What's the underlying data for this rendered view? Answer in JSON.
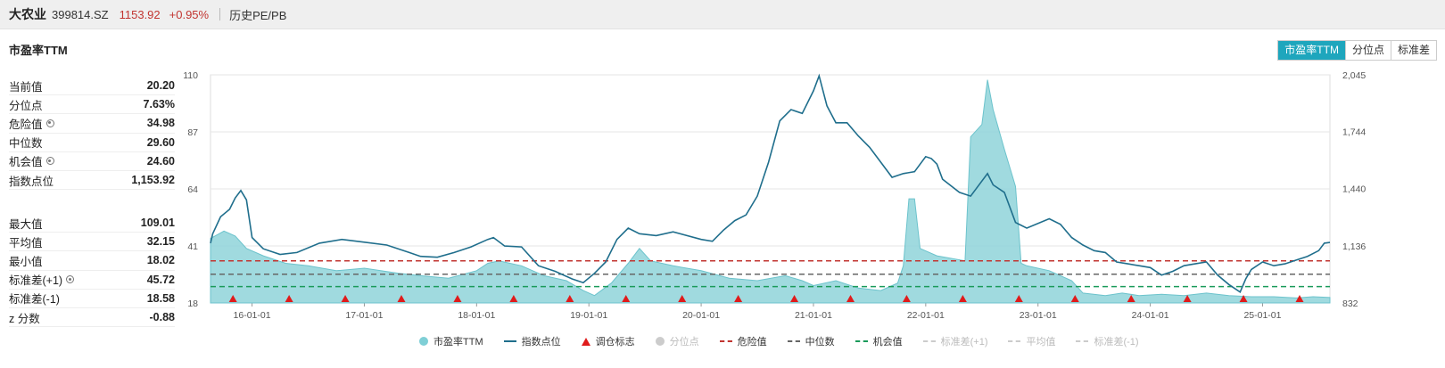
{
  "header": {
    "name": "大农业",
    "code": "399814.SZ",
    "price": "1153.92",
    "change": "+0.95%",
    "history_label": "历史PE/PB"
  },
  "title": "市盈率TTM",
  "tabs": [
    {
      "label": "市盈率TTM",
      "active": true
    },
    {
      "label": "分位点",
      "active": false
    },
    {
      "label": "标准差",
      "active": false
    }
  ],
  "stats_primary": [
    {
      "label": "当前值",
      "value": "20.20",
      "gear": false
    },
    {
      "label": "分位点",
      "value": "7.63%",
      "gear": false
    },
    {
      "label": "危险值",
      "value": "34.98",
      "gear": true
    },
    {
      "label": "中位数",
      "value": "29.60",
      "gear": false
    },
    {
      "label": "机会值",
      "value": "24.60",
      "gear": true
    },
    {
      "label": "指数点位",
      "value": "1,153.92",
      "gear": false
    }
  ],
  "stats_secondary": [
    {
      "label": "最大值",
      "value": "109.01",
      "gear": false
    },
    {
      "label": "平均值",
      "value": "32.15",
      "gear": false
    },
    {
      "label": "最小值",
      "value": "18.02",
      "gear": false
    },
    {
      "label": "标准差(+1)",
      "value": "45.72",
      "gear": true
    },
    {
      "label": "标准差(-1)",
      "value": "18.58",
      "gear": false
    },
    {
      "label": "z 分数",
      "value": "-0.88",
      "gear": false
    }
  ],
  "legend": [
    {
      "label": "市盈率TTM",
      "kind": "dot",
      "color": "#7fcfd6",
      "active": true
    },
    {
      "label": "指数点位",
      "kind": "line",
      "color": "#1f6e8c",
      "active": true
    },
    {
      "label": "调仓标志",
      "kind": "triangle",
      "color": "#e01b1b",
      "active": true
    },
    {
      "label": "分位点",
      "kind": "dot",
      "color": "#cccccc",
      "active": false
    },
    {
      "label": "危险值",
      "kind": "dash",
      "color": "#c23531",
      "active": true
    },
    {
      "label": "中位数",
      "kind": "dash",
      "color": "#666666",
      "active": true
    },
    {
      "label": "机会值",
      "kind": "dash",
      "color": "#1a9a5a",
      "active": true
    },
    {
      "label": "标准差(+1)",
      "kind": "dash",
      "color": "#cccccc",
      "active": false
    },
    {
      "label": "平均值",
      "kind": "dash",
      "color": "#cccccc",
      "active": false
    },
    {
      "label": "标准差(-1)",
      "kind": "dash",
      "color": "#cccccc",
      "active": false
    }
  ],
  "colors": {
    "pe_fill": "#8fd3d9",
    "pe_line": "#6cc3cc",
    "index_line": "#1f6e8c",
    "danger": "#c23531",
    "median": "#666666",
    "opportunity": "#1a9a5a",
    "marker": "#e01b1b"
  },
  "chart_data": {
    "type": "area",
    "x_ticks": [
      "16-01-01",
      "17-01-01",
      "18-01-01",
      "19-01-01",
      "20-01-01",
      "21-01-01",
      "22-01-01",
      "23-01-01",
      "24-01-01",
      "25-01-01"
    ],
    "x_range": [
      2015.63,
      2025.6
    ],
    "y_left": {
      "ticks": [
        110,
        87,
        64,
        41,
        18
      ],
      "range": [
        18,
        110
      ]
    },
    "y_right": {
      "ticks": [
        "2,045",
        "1,744",
        "1,440",
        "1,136",
        "832"
      ],
      "range": [
        832,
        2045
      ]
    },
    "reference_lines": {
      "danger": 34.98,
      "median": 29.6,
      "opportunity": 24.6
    },
    "series": [
      {
        "name": "市盈率TTM",
        "axis": "left",
        "points": [
          [
            2015.63,
            44
          ],
          [
            2015.75,
            47
          ],
          [
            2015.85,
            45
          ],
          [
            2015.95,
            40
          ],
          [
            2016.1,
            37
          ],
          [
            2016.3,
            34
          ],
          [
            2016.5,
            33
          ],
          [
            2016.75,
            31
          ],
          [
            2017.0,
            32
          ],
          [
            2017.3,
            30
          ],
          [
            2017.5,
            29
          ],
          [
            2017.75,
            28
          ],
          [
            2018.0,
            31
          ],
          [
            2018.1,
            34
          ],
          [
            2018.2,
            35
          ],
          [
            2018.4,
            33
          ],
          [
            2018.6,
            29
          ],
          [
            2018.8,
            27
          ],
          [
            2018.95,
            23
          ],
          [
            2019.05,
            21
          ],
          [
            2019.2,
            26
          ],
          [
            2019.35,
            34
          ],
          [
            2019.45,
            40
          ],
          [
            2019.55,
            35
          ],
          [
            2019.75,
            33
          ],
          [
            2020.0,
            31
          ],
          [
            2020.25,
            28
          ],
          [
            2020.5,
            27
          ],
          [
            2020.75,
            29
          ],
          [
            2020.9,
            27
          ],
          [
            2021.0,
            25
          ],
          [
            2021.2,
            27
          ],
          [
            2021.4,
            24
          ],
          [
            2021.6,
            23
          ],
          [
            2021.75,
            26
          ],
          [
            2021.8,
            33
          ],
          [
            2021.85,
            60
          ],
          [
            2021.9,
            60
          ],
          [
            2021.95,
            40
          ],
          [
            2022.1,
            37
          ],
          [
            2022.35,
            35
          ],
          [
            2022.4,
            85
          ],
          [
            2022.5,
            90
          ],
          [
            2022.55,
            108
          ],
          [
            2022.6,
            96
          ],
          [
            2022.7,
            80
          ],
          [
            2022.8,
            65
          ],
          [
            2022.85,
            34
          ],
          [
            2022.9,
            33
          ],
          [
            2023.1,
            31
          ],
          [
            2023.3,
            27
          ],
          [
            2023.4,
            22
          ],
          [
            2023.6,
            21
          ],
          [
            2023.75,
            22
          ],
          [
            2023.9,
            21
          ],
          [
            2024.1,
            21.5
          ],
          [
            2024.3,
            21
          ],
          [
            2024.5,
            22
          ],
          [
            2024.7,
            21
          ],
          [
            2024.9,
            20.5
          ],
          [
            2025.1,
            20.5
          ],
          [
            2025.3,
            20
          ],
          [
            2025.45,
            20.5
          ],
          [
            2025.6,
            20.2
          ]
        ]
      },
      {
        "name": "指数点位",
        "axis": "right",
        "points": [
          [
            2015.63,
            1150
          ],
          [
            2015.65,
            1200
          ],
          [
            2015.72,
            1290
          ],
          [
            2015.8,
            1330
          ],
          [
            2015.85,
            1390
          ],
          [
            2015.9,
            1430
          ],
          [
            2015.95,
            1380
          ],
          [
            2016.0,
            1180
          ],
          [
            2016.1,
            1120
          ],
          [
            2016.25,
            1090
          ],
          [
            2016.4,
            1100
          ],
          [
            2016.6,
            1150
          ],
          [
            2016.8,
            1170
          ],
          [
            2017.0,
            1155
          ],
          [
            2017.2,
            1140
          ],
          [
            2017.4,
            1100
          ],
          [
            2017.5,
            1080
          ],
          [
            2017.65,
            1075
          ],
          [
            2017.8,
            1100
          ],
          [
            2017.95,
            1130
          ],
          [
            2018.1,
            1170
          ],
          [
            2018.15,
            1180
          ],
          [
            2018.25,
            1135
          ],
          [
            2018.4,
            1130
          ],
          [
            2018.55,
            1030
          ],
          [
            2018.7,
            1000
          ],
          [
            2018.85,
            960
          ],
          [
            2018.95,
            940
          ],
          [
            2019.05,
            990
          ],
          [
            2019.15,
            1050
          ],
          [
            2019.25,
            1170
          ],
          [
            2019.35,
            1230
          ],
          [
            2019.45,
            1200
          ],
          [
            2019.6,
            1190
          ],
          [
            2019.75,
            1210
          ],
          [
            2020.0,
            1170
          ],
          [
            2020.1,
            1160
          ],
          [
            2020.2,
            1220
          ],
          [
            2020.3,
            1270
          ],
          [
            2020.4,
            1300
          ],
          [
            2020.5,
            1400
          ],
          [
            2020.55,
            1490
          ],
          [
            2020.6,
            1580
          ],
          [
            2020.7,
            1800
          ],
          [
            2020.8,
            1860
          ],
          [
            2020.9,
            1840
          ],
          [
            2021.0,
            1960
          ],
          [
            2021.05,
            2040
          ],
          [
            2021.12,
            1880
          ],
          [
            2021.2,
            1790
          ],
          [
            2021.3,
            1790
          ],
          [
            2021.4,
            1720
          ],
          [
            2021.5,
            1660
          ],
          [
            2021.6,
            1580
          ],
          [
            2021.7,
            1500
          ],
          [
            2021.8,
            1520
          ],
          [
            2021.9,
            1530
          ],
          [
            2022.0,
            1610
          ],
          [
            2022.05,
            1600
          ],
          [
            2022.1,
            1570
          ],
          [
            2022.15,
            1490
          ],
          [
            2022.3,
            1420
          ],
          [
            2022.4,
            1400
          ],
          [
            2022.5,
            1480
          ],
          [
            2022.55,
            1520
          ],
          [
            2022.6,
            1460
          ],
          [
            2022.7,
            1420
          ],
          [
            2022.8,
            1260
          ],
          [
            2022.9,
            1230
          ],
          [
            2023.1,
            1280
          ],
          [
            2023.2,
            1250
          ],
          [
            2023.3,
            1180
          ],
          [
            2023.4,
            1140
          ],
          [
            2023.5,
            1110
          ],
          [
            2023.6,
            1100
          ],
          [
            2023.7,
            1050
          ],
          [
            2023.8,
            1040
          ],
          [
            2023.9,
            1030
          ],
          [
            2024.0,
            1020
          ],
          [
            2024.1,
            980
          ],
          [
            2024.2,
            1000
          ],
          [
            2024.3,
            1030
          ],
          [
            2024.4,
            1040
          ],
          [
            2024.5,
            1050
          ],
          [
            2024.6,
            980
          ],
          [
            2024.7,
            930
          ],
          [
            2024.8,
            890
          ],
          [
            2024.85,
            960
          ],
          [
            2024.9,
            1010
          ],
          [
            2025.0,
            1050
          ],
          [
            2025.1,
            1030
          ],
          [
            2025.2,
            1040
          ],
          [
            2025.3,
            1060
          ],
          [
            2025.4,
            1080
          ],
          [
            2025.5,
            1110
          ],
          [
            2025.55,
            1150
          ],
          [
            2025.6,
            1153.92
          ]
        ]
      }
    ],
    "markers": {
      "name": "调仓标志",
      "x": [
        2015.83,
        2016.33,
        2016.83,
        2017.33,
        2017.83,
        2018.33,
        2018.83,
        2019.33,
        2019.83,
        2020.33,
        2020.83,
        2021.33,
        2021.83,
        2022.33,
        2022.83,
        2023.33,
        2023.83,
        2024.33,
        2024.83,
        2025.33
      ]
    }
  }
}
